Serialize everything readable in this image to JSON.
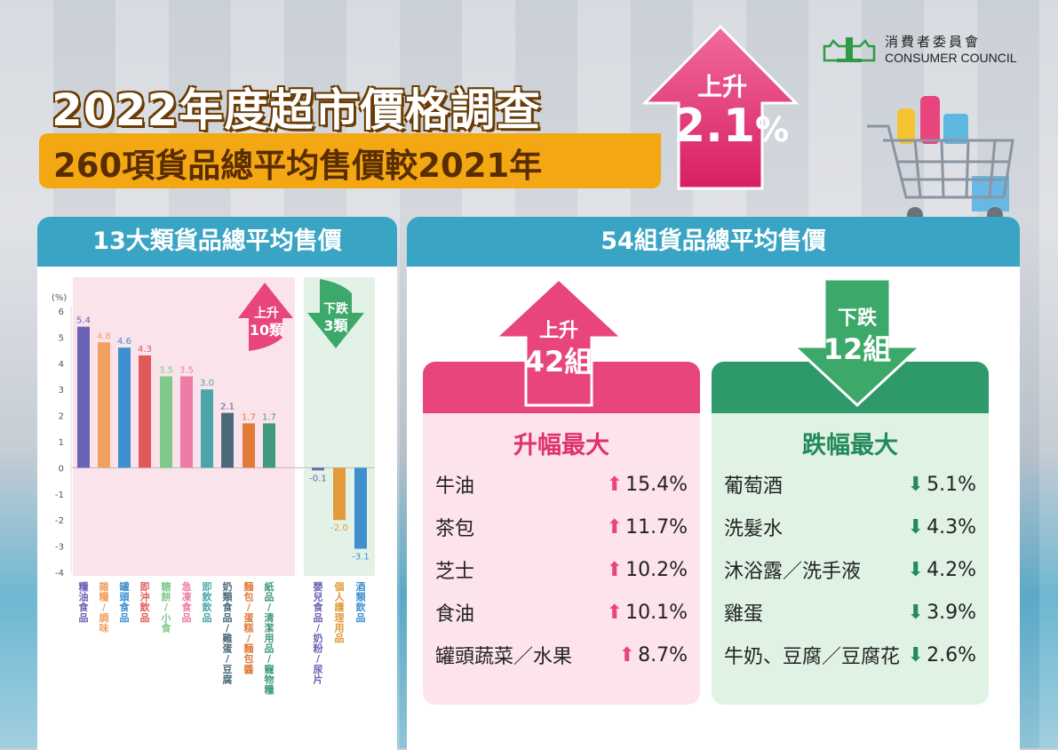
{
  "logo": {
    "zh": "消費者委員會",
    "en": "CONSUMER COUNCIL"
  },
  "title": {
    "line1": "2022年度超市價格調查",
    "line2": "260項貨品總平均售價較2021年",
    "badge_top": "上升",
    "badge_value": "2.1",
    "badge_unit": "%"
  },
  "left_panel": {
    "heading": "13大類貨品總平均售價",
    "up_badge": {
      "line1": "上升",
      "line2": "10類"
    },
    "down_badge": {
      "line1": "下跌",
      "line2": "3類"
    }
  },
  "right_panel": {
    "heading": "54組貨品總平均售價",
    "up_badge": {
      "line1": "上升",
      "line2": "42組"
    },
    "down_badge": {
      "line1": "下跌",
      "line2": "12組"
    },
    "up_column": {
      "title": "升幅最大",
      "items": [
        {
          "name": "牛油",
          "value": "15.4%"
        },
        {
          "name": "茶包",
          "value": "11.7%"
        },
        {
          "name": "芝士",
          "value": "10.2%"
        },
        {
          "name": "食油",
          "value": "10.1%"
        },
        {
          "name": "罐頭蔬菜／水果",
          "value": "8.7%"
        }
      ]
    },
    "down_column": {
      "title": "跌幅最大",
      "items": [
        {
          "name": "葡萄酒",
          "value": "5.1%"
        },
        {
          "name": "洗髮水",
          "value": "4.3%"
        },
        {
          "name": "沐浴露／洗手液",
          "value": "4.2%"
        },
        {
          "name": "雞蛋",
          "value": "3.9%"
        },
        {
          "name": "牛奶、豆腐／豆腐花",
          "value": "2.6%"
        }
      ]
    }
  },
  "colors": {
    "teal": "#3aa4c4",
    "pink": "#e8457f",
    "green": "#2e9a6a",
    "orange": "#f3a712"
  },
  "chart_data": {
    "type": "bar",
    "ylabel": "(%)",
    "ylim": [
      -4,
      6
    ],
    "yticks": [
      6,
      5,
      4,
      3,
      2,
      1,
      0,
      -1,
      -2,
      -3,
      -4
    ],
    "grid": false,
    "categories": [
      "糧油食品",
      "雜糧／調味",
      "罐頭食品",
      "即沖飲品",
      "糖餅／小食",
      "急凍食品",
      "即飲飲品",
      "奶類食品／雞蛋／豆腐",
      "麵包／蛋糕／麵包醬",
      "紙品／清潔用品／寵物糧",
      "嬰兒食品／奶粉／尿片",
      "個人護理用品",
      "酒類飲品"
    ],
    "values": [
      5.4,
      4.8,
      4.6,
      4.3,
      3.5,
      3.5,
      3.0,
      2.1,
      1.7,
      1.7,
      -0.1,
      -2.0,
      -3.1
    ],
    "value_labels": [
      "5.4",
      "4.8",
      "4.6",
      "4.3",
      "3.5",
      "3.5",
      "3.0",
      "2.1",
      "1.7",
      "1.7",
      "-0.1",
      "-2.0",
      "-3.1"
    ],
    "bar_colors": [
      "#6a63b5",
      "#f0a060",
      "#3f8fd0",
      "#e05a5a",
      "#7fc98a",
      "#ec7ba5",
      "#4aa6a8",
      "#4a6a7a",
      "#e07b3a",
      "#3f9a80",
      "#6a63b5",
      "#e39a3a",
      "#3f8fd0"
    ]
  }
}
